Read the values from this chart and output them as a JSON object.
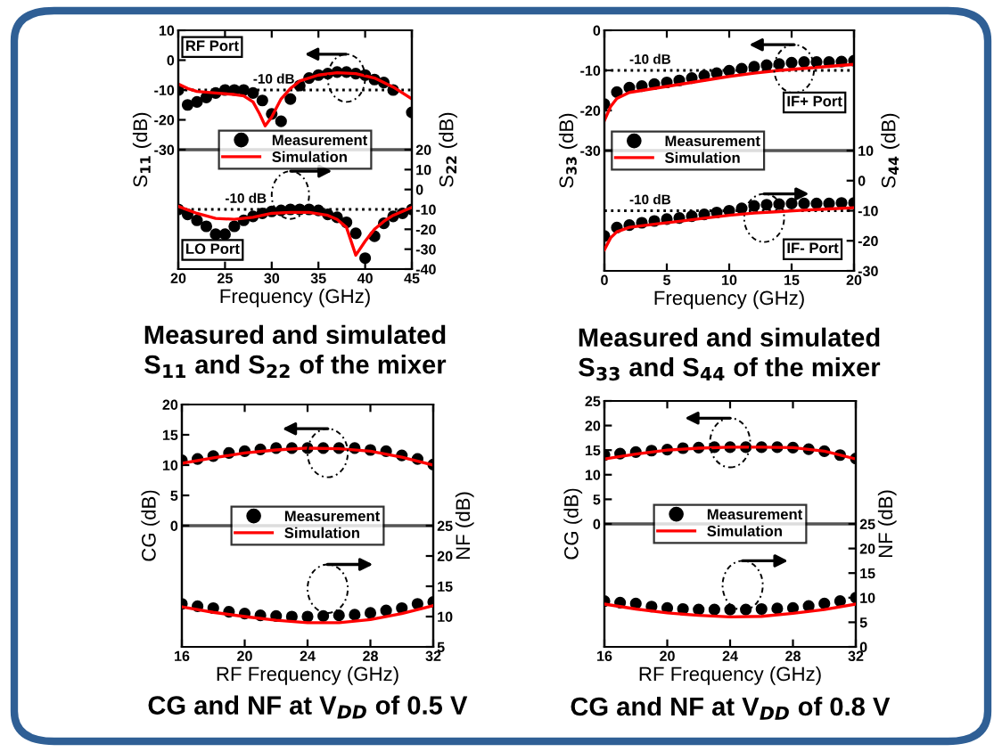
{
  "chart_data": [
    {
      "type": "line",
      "title": "Measured and simulated\nS$_{11}$ and S$_{22}$ of the mixer",
      "xlabel": "Frequency (GHz)",
      "ylabel": "S$_{11}$ (dB)",
      "y2label": "S$_{22}$ (dB)",
      "xlim": [
        20,
        45
      ],
      "xticks": [
        20,
        25,
        30,
        35,
        40,
        45
      ],
      "ylim": [
        -70,
        10
      ],
      "yticks": [
        -30,
        -20,
        -10,
        0,
        10
      ],
      "y2lim": [
        -40,
        80
      ],
      "y2ticks": [
        -40,
        -30,
        -20,
        -10,
        0,
        10,
        20
      ],
      "legend": "center",
      "grid": false,
      "annotations": [
        "RF Port",
        "LO Port"
      ],
      "ref_lines": [
        {
          "axis": "y",
          "value": -30,
          "label": null,
          "color": "#555555",
          "line_style": "solid"
        },
        {
          "axis": "y",
          "value": -10,
          "label": "-10 dB",
          "color": "#000000",
          "line_style": "dotted"
        },
        {
          "axis": "y2",
          "value": -10,
          "label": "-10 dB",
          "color": "#000000",
          "line_style": "dotted"
        }
      ],
      "series": [
        {
          "name": "Measurement",
          "type": "scatter",
          "marker": "circle",
          "color": "#000000",
          "x": [
            20,
            21,
            22,
            23,
            24,
            25,
            26,
            27,
            28,
            29,
            30,
            31,
            32,
            33,
            34,
            35,
            36,
            37,
            38,
            39,
            40,
            41,
            42,
            43,
            45
          ],
          "values": [
            -10,
            -15,
            -14,
            -12.5,
            -11,
            -10,
            -10,
            -10,
            -11,
            -13.5,
            -18,
            -20.5,
            -13,
            -8.5,
            -6,
            -5,
            -4.5,
            -4,
            -4,
            -4.5,
            -5,
            -6.5,
            -7.5,
            -10,
            -17.5
          ]
        },
        {
          "name": "Simulation",
          "color": "#ff0000",
          "x": [
            20,
            21,
            22,
            24,
            26,
            27,
            28,
            28.7,
            29.3,
            30,
            31,
            32,
            33,
            35,
            37,
            39,
            41,
            43,
            45
          ],
          "values": [
            -8,
            -9.5,
            -10.5,
            -11,
            -11.5,
            -12,
            -14,
            -18,
            -22,
            -19,
            -13,
            -9.5,
            -7,
            -5,
            -4.2,
            -4.5,
            -6,
            -9,
            -13
          ]
        },
        {
          "type": "scatter",
          "axis": "y2",
          "marker": "circle",
          "color": "#000000",
          "x": [
            20,
            21,
            22,
            23,
            24,
            25,
            26,
            27,
            28,
            29,
            30,
            31,
            32,
            33,
            34,
            35,
            36,
            37,
            38,
            39,
            40,
            41,
            42,
            43,
            44,
            45
          ],
          "values": [
            -10,
            -12.5,
            -15.5,
            -18.5,
            -22.5,
            -22.5,
            -18.5,
            -15.5,
            -13.5,
            -12,
            -11,
            -10.5,
            -10,
            -10,
            -10,
            -10.5,
            -12.5,
            -14,
            -16.5,
            -22,
            -34.5,
            -23.5,
            -17,
            -13.5,
            -12,
            -10
          ]
        },
        {
          "axis": "y2",
          "color": "#ff0000",
          "x": [
            20,
            22,
            24,
            26,
            28,
            30,
            32,
            34,
            36,
            37,
            38,
            39,
            40,
            41,
            42,
            43,
            44,
            45
          ],
          "values": [
            -8.5,
            -12,
            -14.5,
            -15,
            -14,
            -12,
            -11.5,
            -11.5,
            -13,
            -15,
            -19,
            -33,
            -26,
            -20,
            -16,
            -13,
            -11,
            -9
          ]
        }
      ]
    },
    {
      "type": "line",
      "title": "Measured and simulated\nS$_{33}$ and S$_{44}$ of the mixer",
      "xlabel": "Frequency (GHz)",
      "ylabel": "S$_{33}$ (dB)",
      "y2label": "S$_{44}$ (dB)",
      "xlim": [
        0,
        20
      ],
      "xticks": [
        0,
        5,
        10,
        15,
        20
      ],
      "ylim": [
        -60,
        0
      ],
      "yticks": [
        -30,
        -20,
        -10,
        0
      ],
      "y2lim": [
        -30,
        50
      ],
      "y2ticks": [
        -30,
        -20,
        -10,
        0,
        10
      ],
      "legend": "center left",
      "grid": false,
      "annotations": [
        "IF+ Port",
        "IF- Port"
      ],
      "ref_lines": [
        {
          "axis": "y",
          "value": -30,
          "label": null,
          "color": "#555555",
          "line_style": "solid"
        },
        {
          "axis": "y",
          "value": -10,
          "label": "-10 dB",
          "color": "#000000",
          "line_style": "dotted"
        },
        {
          "axis": "y2",
          "value": -10,
          "label": "-10 dB",
          "color": "#000000",
          "line_style": "dotted"
        }
      ],
      "series": [
        {
          "name": "Measurement",
          "type": "scatter",
          "marker": "circle",
          "color": "#000000",
          "x": [
            0,
            1,
            2,
            3,
            4,
            5,
            6,
            7,
            8,
            9,
            10,
            11,
            12,
            13,
            14,
            15,
            16,
            17,
            18,
            19,
            20
          ],
          "values": [
            -18.4,
            -15.4,
            -14.3,
            -13.9,
            -13.4,
            -13,
            -12.5,
            -11.9,
            -11.3,
            -10.7,
            -10.1,
            -9.6,
            -9.1,
            -8.7,
            -8.4,
            -8.1,
            -7.9,
            -7.9,
            -7.9,
            -7.8,
            -7.6
          ]
        },
        {
          "name": "Simulation",
          "color": "#ff0000",
          "x": [
            0,
            0.5,
            1,
            2,
            4,
            6,
            8,
            10,
            12,
            14,
            16,
            18,
            20
          ],
          "values": [
            -22.5,
            -19,
            -17,
            -15.5,
            -14.5,
            -13.5,
            -12.5,
            -11.5,
            -10.7,
            -10,
            -9.5,
            -9,
            -8.5
          ]
        },
        {
          "type": "scatter",
          "axis": "y2",
          "marker": "circle",
          "color": "#000000",
          "x": [
            0,
            1,
            2,
            3,
            4,
            5,
            6,
            7,
            8,
            9,
            10,
            11,
            12,
            13,
            14,
            15,
            16,
            17,
            18,
            19,
            20
          ],
          "values": [
            -18.4,
            -15.6,
            -14.8,
            -14,
            -13.4,
            -12.8,
            -12.4,
            -11.8,
            -11.2,
            -10.6,
            -10,
            -9.2,
            -8.4,
            -8,
            -7.8,
            -7.6,
            -7.6,
            -7.6,
            -7.6,
            -7.4,
            -7.4
          ]
        },
        {
          "axis": "y2",
          "color": "#ff0000",
          "x": [
            0,
            0.5,
            1,
            2,
            4,
            6,
            8,
            10,
            12,
            14,
            16,
            18,
            20
          ],
          "values": [
            -23,
            -19,
            -17,
            -15.5,
            -14.5,
            -13.5,
            -12.5,
            -11.5,
            -10.8,
            -10.3,
            -9.8,
            -9.4,
            -9
          ]
        }
      ]
    },
    {
      "type": "line",
      "title": "CG and NF at V$_{DD}$ of 0.5 V",
      "xlabel": "RF Frequency (GHz)",
      "ylabel": "CG (dB)",
      "y2label": "NF (dB)",
      "xlim": [
        16,
        32
      ],
      "xticks": [
        16,
        20,
        24,
        28,
        32
      ],
      "ylim": [
        -20,
        20
      ],
      "yticks": [
        0,
        5,
        10,
        15,
        20
      ],
      "y2lim": [
        5,
        45
      ],
      "y2ticks": [
        5,
        10,
        15,
        20,
        25
      ],
      "legend": "center",
      "grid": false,
      "ref_lines": [
        {
          "axis": "y",
          "value": 0,
          "label": null,
          "color": "#555555",
          "line_style": "solid"
        }
      ],
      "series": [
        {
          "name": "Measurement",
          "type": "scatter",
          "marker": "circle",
          "color": "#000000",
          "x": [
            16,
            17,
            18,
            19,
            20,
            21,
            22,
            23,
            24,
            25,
            26,
            27,
            28,
            29,
            30,
            31,
            32
          ],
          "values": [
            10.8,
            11,
            11.5,
            12,
            12.3,
            12.6,
            12.8,
            12.8,
            12.8,
            12.8,
            12.8,
            12.8,
            12.5,
            12.3,
            11.6,
            11,
            10.1
          ]
        },
        {
          "name": "Simulation",
          "color": "#ff0000",
          "x": [
            16,
            18,
            20,
            22,
            24,
            26,
            28,
            30,
            32
          ],
          "values": [
            10.3,
            11.2,
            12,
            12.5,
            12.8,
            12.7,
            12.3,
            11.3,
            10
          ]
        },
        {
          "type": "scatter",
          "axis": "y2",
          "marker": "circle",
          "color": "#000000",
          "x": [
            16,
            17,
            18,
            19,
            20,
            21,
            22,
            23,
            24,
            25,
            26,
            27,
            28,
            29,
            30,
            31,
            32
          ],
          "values": [
            12.1,
            11.7,
            11.4,
            10.8,
            10.5,
            10.2,
            10.1,
            10,
            10,
            10.1,
            10.2,
            10.3,
            10.6,
            11,
            11.4,
            12.1,
            12.4
          ]
        },
        {
          "axis": "y2",
          "color": "#ff0000",
          "x": [
            16,
            18,
            20,
            22,
            24,
            26,
            28,
            30,
            32
          ],
          "values": [
            11.6,
            10.7,
            10,
            9.4,
            9,
            9,
            9.5,
            10.5,
            11.8
          ]
        }
      ]
    },
    {
      "type": "line",
      "title": "CG and NF at V$_{DD}$ of 0.8 V",
      "xlabel": "RF Frequency (GHz)",
      "ylabel": "CG (dB)",
      "y2label": "NF (dB)",
      "xlim": [
        16,
        32
      ],
      "xticks": [
        16,
        20,
        24,
        28,
        32
      ],
      "ylim": [
        -25,
        25
      ],
      "yticks": [
        0,
        5,
        10,
        15,
        20,
        25
      ],
      "y2lim": [
        0,
        50
      ],
      "y2ticks": [
        0,
        5,
        10,
        15,
        20,
        25
      ],
      "legend": "center",
      "grid": false,
      "ref_lines": [
        {
          "axis": "y",
          "value": 0,
          "label": null,
          "color": "#555555",
          "line_style": "solid"
        }
      ],
      "series": [
        {
          "name": "Measurement",
          "type": "scatter",
          "marker": "circle",
          "color": "#000000",
          "x": [
            16,
            17,
            18,
            19,
            20,
            21,
            22,
            23,
            24,
            25,
            26,
            27,
            28,
            29,
            30,
            31,
            32
          ],
          "values": [
            14,
            14.3,
            14.6,
            14.9,
            15.1,
            15.4,
            15.5,
            15.6,
            15.6,
            15.6,
            15.6,
            15.6,
            15.5,
            15.2,
            14.8,
            14,
            13.3
          ]
        },
        {
          "name": "Simulation",
          "color": "#ff0000",
          "x": [
            16,
            18,
            20,
            22,
            24,
            26,
            28,
            30,
            32
          ],
          "values": [
            13.2,
            14.2,
            15,
            15.4,
            15.6,
            15.6,
            15.5,
            14.8,
            13.2
          ]
        },
        {
          "type": "scatter",
          "axis": "y2",
          "marker": "circle",
          "color": "#000000",
          "x": [
            16,
            17,
            18,
            19,
            20,
            21,
            22,
            23,
            24,
            25,
            26,
            27,
            28,
            29,
            30,
            31,
            32
          ],
          "values": [
            9.3,
            9,
            8.8,
            8.2,
            7.9,
            7.7,
            7.6,
            7.6,
            7.6,
            7.6,
            7.7,
            7.8,
            7.9,
            8.3,
            8.8,
            9.3,
            10
          ]
        },
        {
          "axis": "y2",
          "color": "#ff0000",
          "x": [
            16,
            18,
            20,
            22,
            24,
            26,
            28,
            30,
            32
          ],
          "values": [
            8.7,
            7.7,
            6.9,
            6.4,
            6.1,
            6.2,
            6.8,
            7.6,
            8.7
          ]
        }
      ]
    }
  ]
}
